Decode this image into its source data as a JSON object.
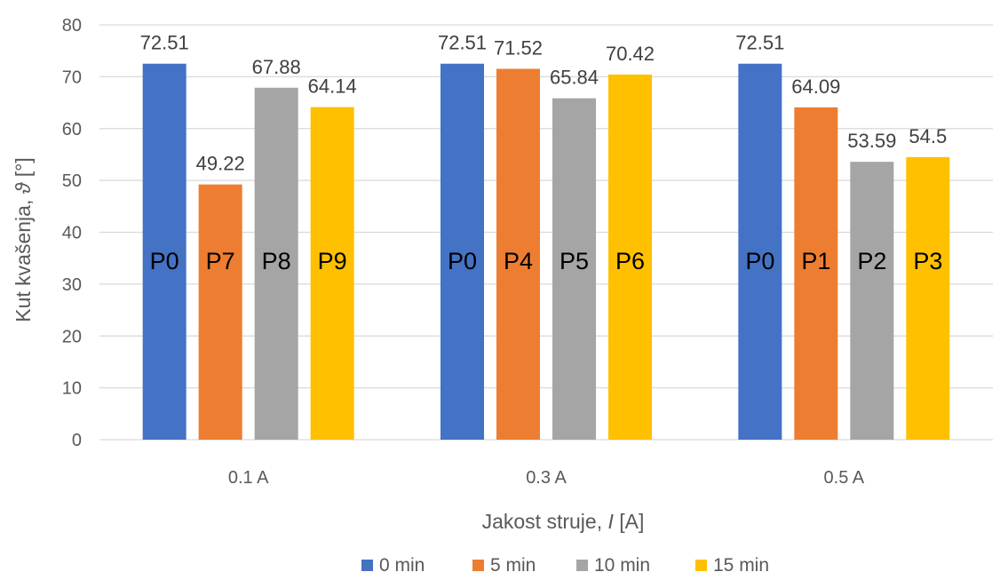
{
  "chart_data": {
    "type": "bar",
    "categories": [
      "0.1 A",
      "0.3 A",
      "0.5 A"
    ],
    "series": [
      {
        "name": "0 min",
        "color": "#4472C4",
        "values": [
          72.51,
          72.51,
          72.51
        ],
        "bar_labels": [
          "P0",
          "P0",
          "P0"
        ]
      },
      {
        "name": "5 min",
        "color": "#ED7D31",
        "values": [
          49.22,
          71.52,
          64.09
        ],
        "bar_labels": [
          "P7",
          "P4",
          "P1"
        ]
      },
      {
        "name": "10 min",
        "color": "#A5A5A5",
        "values": [
          67.88,
          65.84,
          53.59
        ],
        "bar_labels": [
          "P8",
          "P5",
          "P2"
        ]
      },
      {
        "name": "15 min",
        "color": "#FFC000",
        "values": [
          64.14,
          70.42,
          54.5
        ],
        "bar_labels": [
          "P9",
          "P6",
          "P3"
        ]
      }
    ],
    "xlabel": {
      "prefix": "Jakost struje, ",
      "symbol": "I",
      "suffix": " [A]"
    },
    "ylabel": {
      "prefix": "Kut kvašenja, ",
      "symbol": "ϑ",
      "suffix": " [°]"
    },
    "ylim": [
      0,
      80
    ],
    "yticks": [
      0,
      10,
      20,
      30,
      40,
      50,
      60,
      70,
      80
    ],
    "grid": true,
    "legend_position": "bottom"
  }
}
